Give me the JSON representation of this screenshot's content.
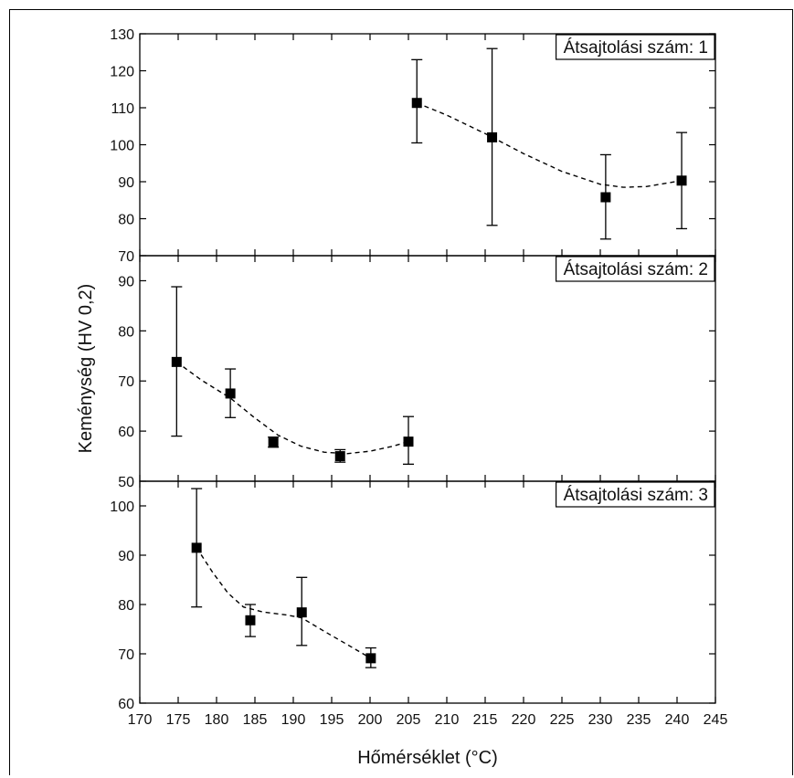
{
  "chart_data": {
    "type": "scatter",
    "xlabel": "Hőmérséklet (°C)",
    "ylabel": "Keménység (HV 0,2)",
    "xlim": [
      170,
      245
    ],
    "xticks": [
      170,
      175,
      180,
      185,
      190,
      195,
      200,
      205,
      210,
      215,
      220,
      225,
      230,
      235,
      240,
      245
    ],
    "panels": [
      {
        "label": "Átsajtolási szám: 1",
        "ylim": [
          70,
          130
        ],
        "yticks": [
          70,
          80,
          90,
          100,
          110,
          120,
          130
        ],
        "points": [
          {
            "x": 206.1,
            "y": 111.3,
            "err_low": 100.5,
            "err_high": 123.0
          },
          {
            "x": 215.9,
            "y": 102.0,
            "err_low": 78.2,
            "err_high": 126.0
          },
          {
            "x": 230.7,
            "y": 85.8,
            "err_low": 74.5,
            "err_high": 97.3
          },
          {
            "x": 240.6,
            "y": 90.3,
            "err_low": 77.3,
            "err_high": 103.3
          }
        ],
        "fit": [
          [
            206.1,
            111.3
          ],
          [
            210,
            108.0
          ],
          [
            215,
            103.0
          ],
          [
            220,
            97.6
          ],
          [
            225,
            92.8
          ],
          [
            230,
            89.3
          ],
          [
            233,
            88.5
          ],
          [
            236,
            88.7
          ],
          [
            240.6,
            90.3
          ]
        ]
      },
      {
        "label": "Átsajtolási szám: 2",
        "ylim": [
          50,
          95
        ],
        "yticks": [
          50,
          60,
          70,
          80,
          90
        ],
        "points": [
          {
            "x": 174.8,
            "y": 73.8,
            "err_low": 59.0,
            "err_high": 88.8
          },
          {
            "x": 181.8,
            "y": 67.5,
            "err_low": 62.7,
            "err_high": 72.4
          },
          {
            "x": 187.4,
            "y": 57.7,
            "err_low": 56.8,
            "err_high": 58.8
          },
          {
            "x": 196.1,
            "y": 55.0,
            "err_low": 53.8,
            "err_high": 56.3
          },
          {
            "x": 205.0,
            "y": 57.9,
            "err_low": 53.4,
            "err_high": 62.9
          }
        ],
        "fit": [
          [
            174.8,
            73.8
          ],
          [
            178,
            70.2
          ],
          [
            181.8,
            66.6
          ],
          [
            185,
            62.6
          ],
          [
            188,
            59.2
          ],
          [
            191,
            57.0
          ],
          [
            194,
            55.8
          ],
          [
            197,
            55.5
          ],
          [
            200,
            56.0
          ],
          [
            203,
            57.0
          ],
          [
            205.0,
            57.9
          ]
        ]
      },
      {
        "label": "Átsajtolási szám: 3",
        "ylim": [
          60,
          105
        ],
        "yticks": [
          60,
          70,
          80,
          90,
          100
        ],
        "points": [
          {
            "x": 177.4,
            "y": 91.5,
            "err_low": 79.5,
            "err_high": 103.5
          },
          {
            "x": 184.4,
            "y": 76.8,
            "err_low": 73.5,
            "err_high": 80.0
          },
          {
            "x": 191.1,
            "y": 78.4,
            "err_low": 71.7,
            "err_high": 85.5
          },
          {
            "x": 200.1,
            "y": 69.1,
            "err_low": 67.2,
            "err_high": 71.2
          }
        ],
        "fit": [
          [
            177.4,
            91.5
          ],
          [
            179.5,
            86.5
          ],
          [
            181.5,
            82.3
          ],
          [
            183.5,
            79.5
          ],
          [
            186,
            78.5
          ],
          [
            189,
            77.9
          ],
          [
            191.1,
            77.3
          ],
          [
            194,
            74.6
          ],
          [
            197,
            71.9
          ],
          [
            200.1,
            69.1
          ]
        ]
      }
    ]
  }
}
